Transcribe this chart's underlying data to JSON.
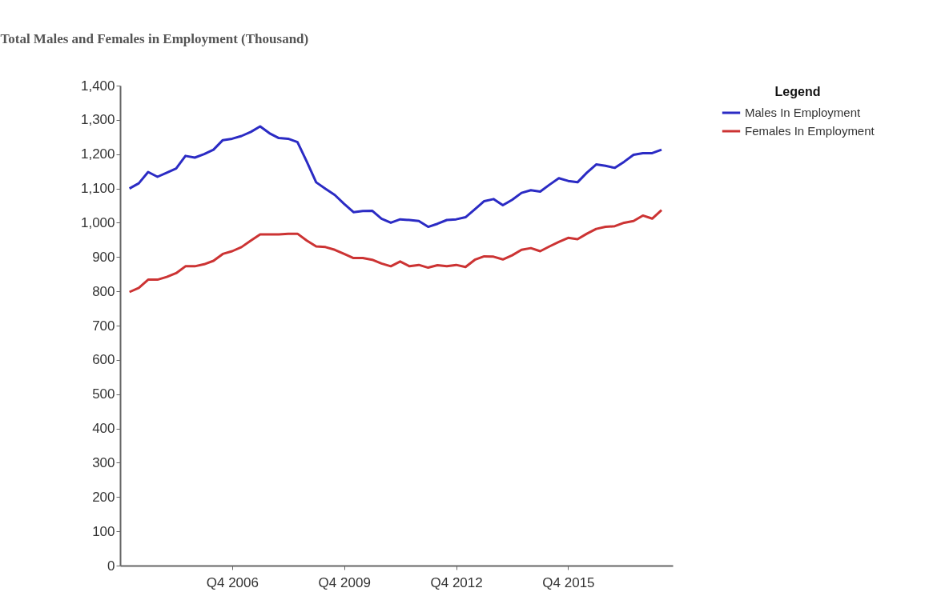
{
  "chart_data": {
    "type": "line",
    "title": "Total Males and Females in Employment (Thousand)",
    "categories": [
      null,
      null,
      null,
      null,
      null,
      null,
      null,
      null,
      null,
      null,
      null,
      "Q4 2006",
      null,
      null,
      null,
      null,
      null,
      null,
      null,
      null,
      null,
      null,
      null,
      "Q4 2009",
      null,
      null,
      null,
      null,
      null,
      null,
      null,
      null,
      null,
      null,
      null,
      "Q4 2012",
      null,
      null,
      null,
      null,
      null,
      null,
      null,
      null,
      null,
      null,
      null,
      "Q4 2015",
      null,
      null,
      null,
      null,
      null,
      null,
      null,
      null,
      null,
      null
    ],
    "series": [
      {
        "name": "Males In Employment",
        "color": "#2b2bc4",
        "values": [
          1100,
          1115,
          1148,
          1134,
          1146,
          1158,
          1195,
          1190,
          1200,
          1213,
          1241,
          1245,
          1253,
          1265,
          1281,
          1261,
          1247,
          1245,
          1235,
          1178,
          1118,
          1099,
          1081,
          1055,
          1031,
          1034,
          1035,
          1012,
          1000,
          1010,
          1008,
          1005,
          988,
          997,
          1008,
          1010,
          1016,
          1039,
          1063,
          1069,
          1051,
          1067,
          1087,
          1095,
          1091,
          1111,
          1130,
          1122,
          1118,
          1146,
          1170,
          1166,
          1160,
          1178,
          1198,
          1203,
          1203,
          1213
        ]
      },
      {
        "name": "Females In Employment",
        "color": "#cc3333",
        "values": [
          798,
          810,
          834,
          834,
          842,
          853,
          873,
          873,
          879,
          889,
          909,
          917,
          929,
          948,
          966,
          966,
          966,
          968,
          968,
          948,
          931,
          929,
          921,
          909,
          897,
          897,
          892,
          881,
          873,
          887,
          873,
          877,
          869,
          876,
          873,
          877,
          871,
          892,
          902,
          901,
          893,
          905,
          921,
          926,
          917,
          931,
          944,
          956,
          952,
          968,
          982,
          988,
          990,
          1000,
          1005,
          1021,
          1012,
          1037
        ]
      }
    ],
    "ylim": [
      0,
      1400
    ],
    "yticks": [
      0,
      100,
      200,
      300,
      400,
      500,
      600,
      700,
      800,
      900,
      {
        "value": 1000,
        "label": "1,000"
      },
      {
        "value": 1100,
        "label": "1,100"
      },
      {
        "value": 1200,
        "label": "1,200"
      },
      {
        "value": 1300,
        "label": "1,300"
      },
      {
        "value": 1400,
        "label": "1,400"
      }
    ],
    "legend_title": "Legend",
    "legend": "top right",
    "grid": false,
    "marker": "none",
    "line_style": "solid"
  }
}
